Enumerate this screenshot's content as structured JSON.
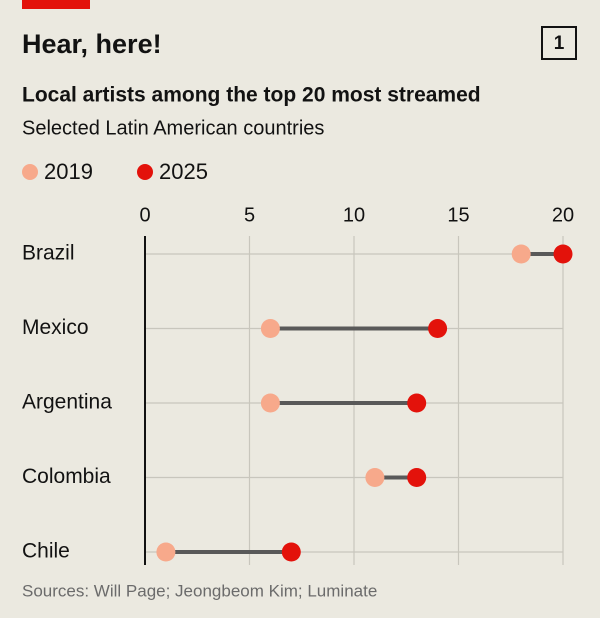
{
  "chart_data": {
    "type": "dumbbell",
    "title": "Hear, here!",
    "badge": "1",
    "subtitle": "Local artists among the top 20 most streamed",
    "description": "Selected Latin American countries",
    "source": "Sources: Will Page; Jeongbeom Kim; Luminate",
    "categories": [
      "Brazil",
      "Mexico",
      "Argentina",
      "Colombia",
      "Chile"
    ],
    "series": [
      {
        "name": "2019",
        "color": "#f7a98b",
        "values": [
          18,
          6,
          6,
          11,
          1
        ]
      },
      {
        "name": "2025",
        "color": "#e3120b",
        "values": [
          20,
          14,
          13,
          13,
          7
        ]
      }
    ],
    "connector_color": "#595959",
    "xlim": [
      0,
      20
    ],
    "xticks": [
      0,
      5,
      10,
      15,
      20
    ],
    "grid": true
  }
}
